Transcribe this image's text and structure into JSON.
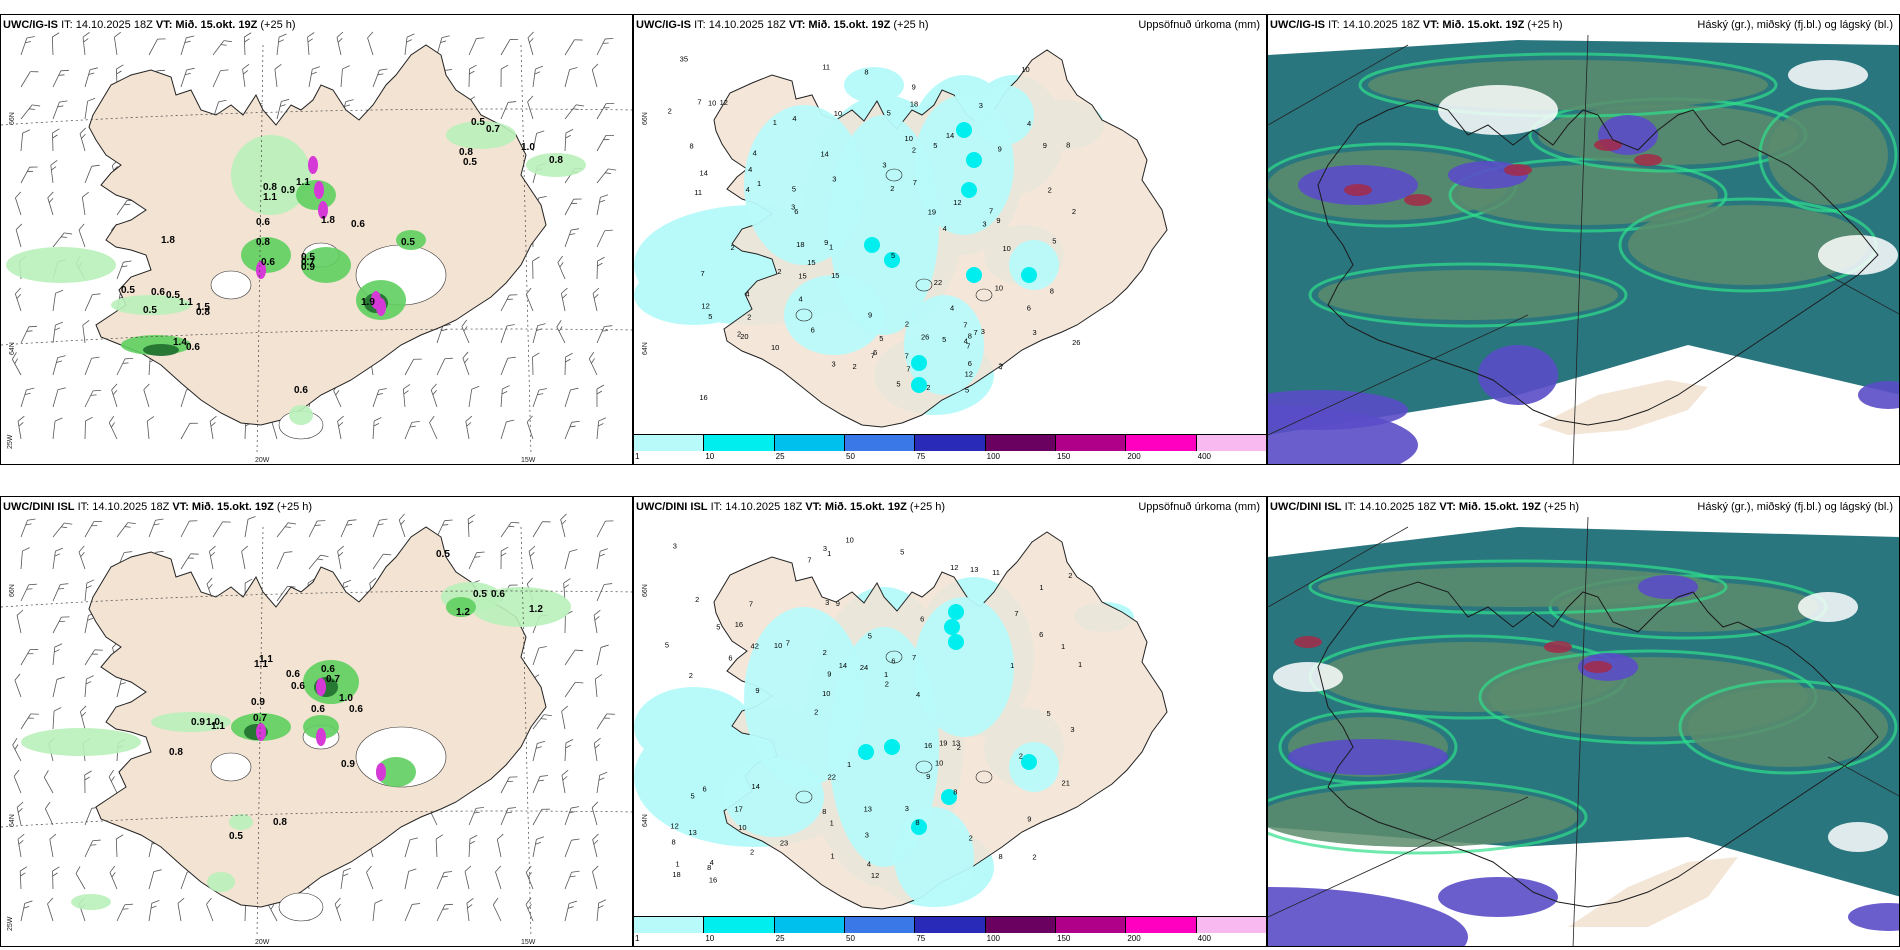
{
  "panels": {
    "top_left": {
      "model": "UWC/IG-IS",
      "it": "IT: 14.10.2025 18Z",
      "vt": "VT: Mið. 15.okt. 19Z",
      "lead": "(+25 h)"
    },
    "top_mid": {
      "model": "UWC/IG-IS",
      "it": "IT: 14.10.2025 18Z",
      "vt": "VT: Mið. 15.okt. 19Z",
      "lead": "(+25 h)",
      "title": "Uppsöfnuð úrkoma (mm)"
    },
    "top_right": {
      "model": "UWC/IG-IS",
      "it": "IT: 14.10.2025 18Z",
      "vt": "VT: Mið. 15.okt. 19Z",
      "lead": "(+25 h)",
      "title": "Háský (gr.), miðský (fj.bl.) og lágský (bl.)"
    },
    "bot_left": {
      "model": "UWC/DINI ISL",
      "it": "IT: 14.10.2025 18Z",
      "vt": "VT: Mið. 15.okt. 19Z",
      "lead": "(+25 h)"
    },
    "bot_mid": {
      "model": "UWC/DINI ISL",
      "it": "IT: 14.10.2025 18Z",
      "vt": "VT: Mið. 15.okt. 19Z",
      "lead": "(+25 h)",
      "title": "Uppsöfnuð úrkoma (mm)"
    },
    "bot_right": {
      "model": "UWC/DINI ISL",
      "it": "IT: 14.10.2025 18Z",
      "vt": "VT: Mið. 15.okt. 19Z",
      "lead": "(+25 h)",
      "title": "Háský (gr.), miðský (fj.bl.) og lágský (bl.)"
    }
  },
  "axes": {
    "lat66": "66N",
    "lat64": "64N",
    "lon25": "25W",
    "lon20": "20W",
    "lon15": "15W"
  },
  "colorbar": {
    "ticks": [
      "1",
      "10",
      "25",
      "50",
      "75",
      "100",
      "150",
      "200",
      "400"
    ],
    "colors": [
      "#b8fafa",
      "#00eeee",
      "#00c0ee",
      "#3a78e8",
      "#2a2ab8",
      "#6a0060",
      "#b0008a",
      "#ff00c0",
      "#f8b8f0"
    ]
  },
  "colors": {
    "land": "#f2e3d3",
    "snow_green_light": "#b9f0b9",
    "snow_green": "#5fcf5f",
    "snow_green_dark": "#1e6e2e",
    "precip": "#b8fafa",
    "precip_mid": "#00eeee",
    "cloud_teal": "#1f6f78",
    "cloud_green": "#5c8c6c",
    "cloud_violet": "#5a4cc8"
  },
  "top_left_labels": [
    "0.5",
    "0.7",
    "0.8",
    "0.5",
    "1.0",
    "0.8",
    "0.8",
    "0.9",
    "1.1",
    "1.1",
    "0.6",
    "1.8",
    "0.8",
    "0.6",
    "1.8",
    "0.6",
    "0.5",
    "0.7",
    "0.5",
    "0.5",
    "0.6",
    "0.5",
    "1.1",
    "1.5",
    "0.5",
    "0.8",
    "1.4",
    "0.6",
    "0.9",
    "1.9",
    "0.6"
  ],
  "bot_left_labels": [
    "0.5",
    "0.5",
    "0.6",
    "1.2",
    "1.2",
    "1.1",
    "0.6",
    "0.6",
    "0.7",
    "0.6",
    "1.1",
    "1.0",
    "0.9",
    "1.0",
    "1.1",
    "0.9",
    "0.7",
    "0.6",
    "0.6",
    "0.9",
    "0.8",
    "0.8",
    "0.5"
  ],
  "top_mid_labels": [
    "3",
    "5",
    "2",
    "2",
    "2",
    "5",
    "6",
    "7",
    "7",
    "4",
    "4",
    "3",
    "2",
    "2",
    "3",
    "7",
    "7",
    "8",
    "8",
    "9",
    "12",
    "10",
    "4",
    "6",
    "7",
    "10",
    "9",
    "5",
    "4",
    "5",
    "7",
    "4",
    "10",
    "9",
    "4",
    "14",
    "10",
    "7",
    "1",
    "2",
    "16",
    "20",
    "18",
    "12",
    "11",
    "10",
    "14",
    "15",
    "11",
    "10",
    "7",
    "8",
    "9",
    "12",
    "8",
    "6",
    "15",
    "3",
    "5",
    "7",
    "6",
    "2",
    "1",
    "1",
    "5",
    "2",
    "15",
    "9",
    "6",
    "3",
    "12",
    "14",
    "8",
    "19",
    "2",
    "2",
    "4",
    "5",
    "7",
    "3",
    "35",
    "26",
    "22",
    "18",
    "26",
    "10",
    "9",
    "4",
    "5",
    "4",
    "4",
    "2",
    "2",
    "5",
    "3",
    "2",
    "5",
    "7",
    "3"
  ],
  "bot_mid_labels": [
    "2",
    "2",
    "1",
    "2",
    "6",
    "4",
    "3",
    "5",
    "6",
    "7",
    "8",
    "10",
    "9",
    "6",
    "2",
    "2",
    "1",
    "1",
    "16",
    "6",
    "10",
    "8",
    "9",
    "7",
    "12",
    "14",
    "8",
    "9",
    "13",
    "12",
    "10",
    "6",
    "9",
    "2",
    "1",
    "1",
    "1",
    "1",
    "2",
    "5",
    "7",
    "2",
    "10",
    "8",
    "17",
    "16",
    "18",
    "13",
    "11",
    "10",
    "9",
    "5",
    "16",
    "13",
    "8",
    "5",
    "7",
    "14",
    "21",
    "22",
    "23",
    "19",
    "42",
    "12",
    "3",
    "5",
    "3",
    "2",
    "3",
    "24",
    "13",
    "4",
    "2",
    "1",
    "1",
    "1",
    "2",
    "4",
    "3",
    "3",
    "5",
    "7",
    "8"
  ]
}
